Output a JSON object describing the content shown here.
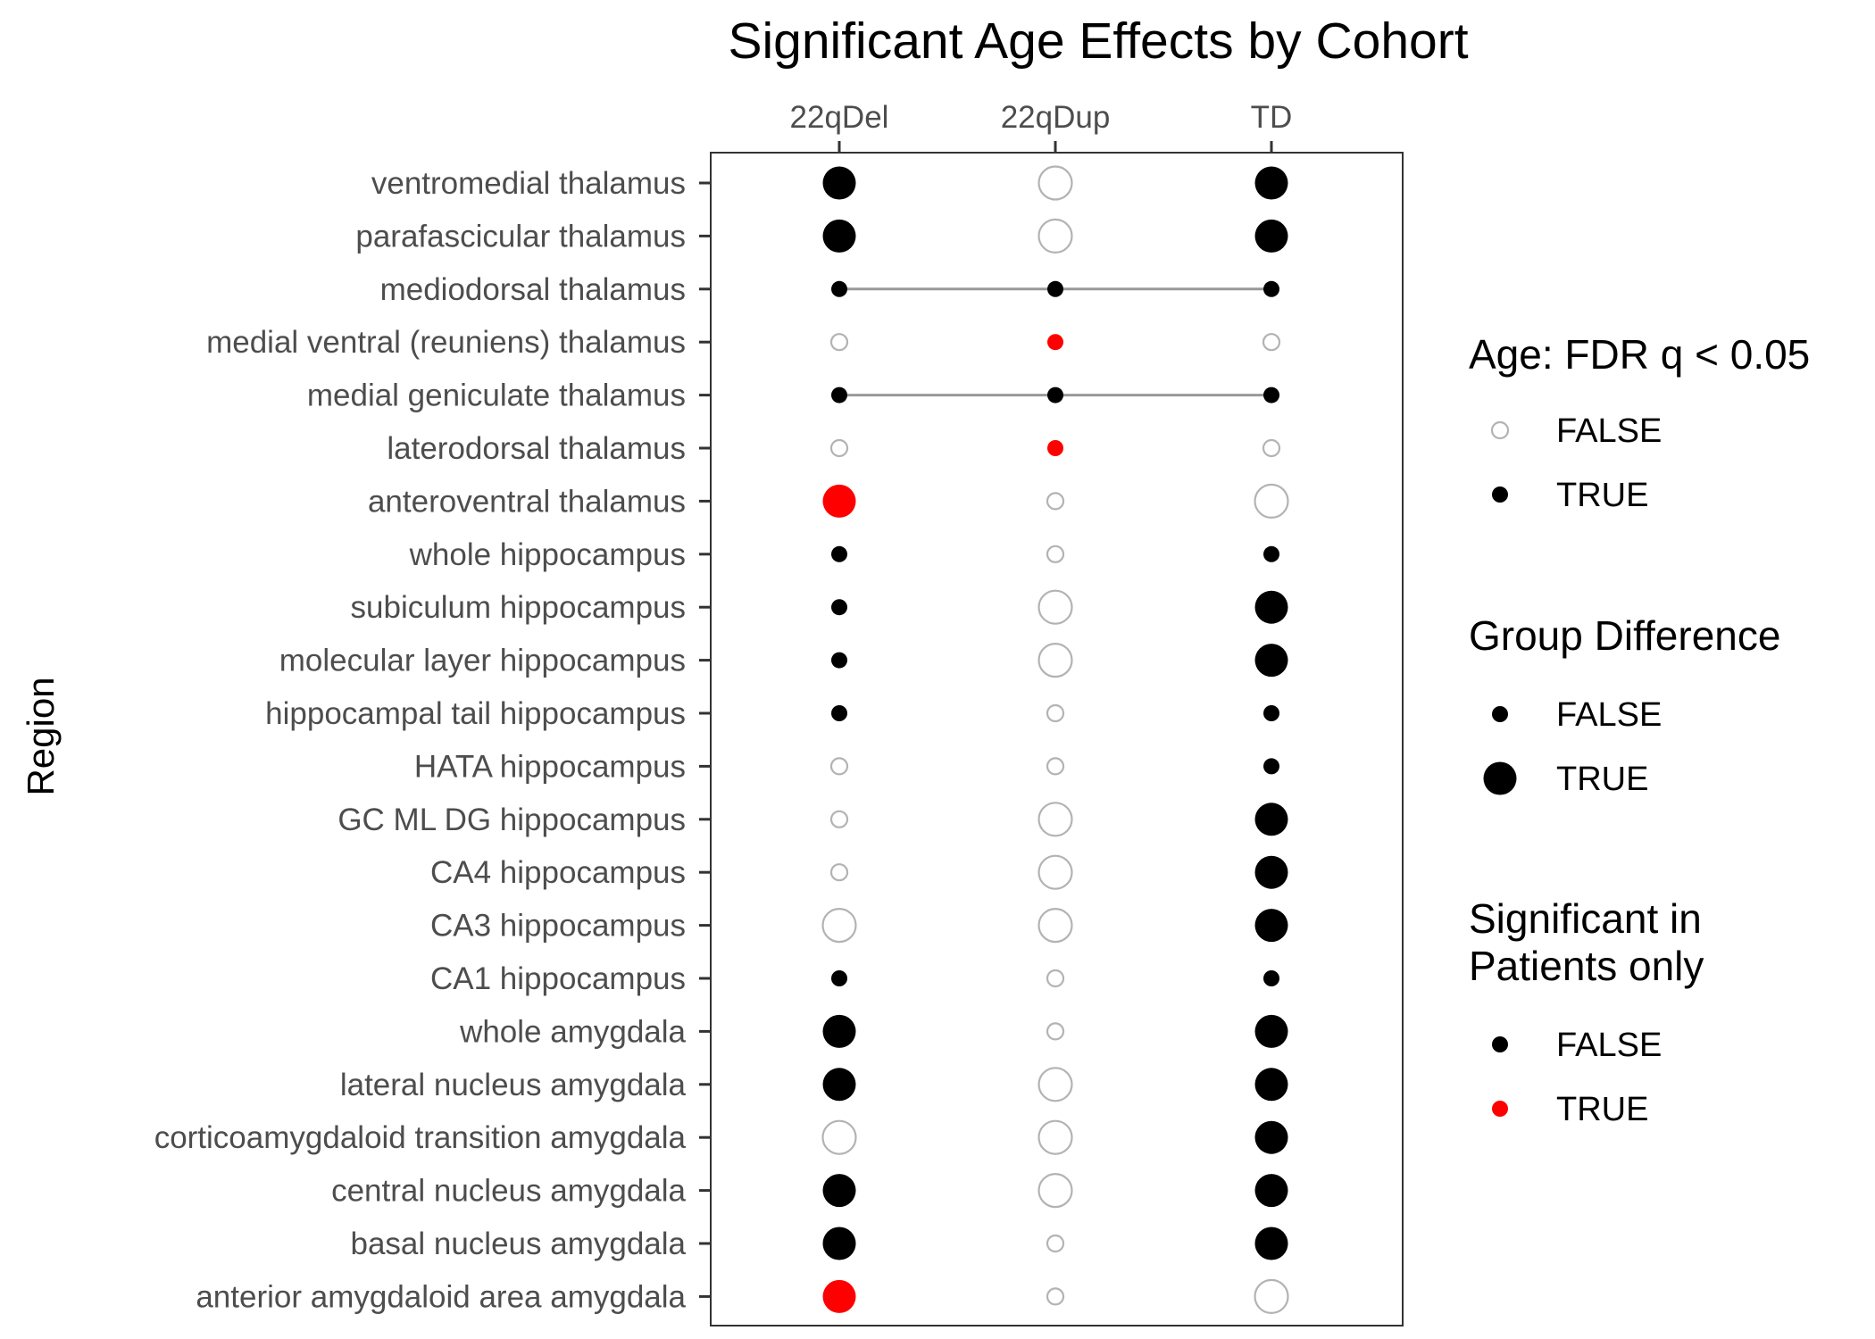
{
  "chart_data": {
    "type": "scatter",
    "title": "Significant Age Effects by Cohort",
    "xlabel": "",
    "ylabel": "Region",
    "x_axis_position": "top",
    "grid": false,
    "legend_position": "right",
    "columns": [
      "22qDel",
      "22qDup",
      "TD"
    ],
    "regions": [
      "ventromedial thalamus",
      "parafascicular thalamus",
      "mediodorsal thalamus",
      "medial ventral (reuniens) thalamus",
      "medial geniculate thalamus",
      "laterodorsal thalamus",
      "anteroventral thalamus",
      "whole hippocampus",
      "subiculum hippocampus",
      "molecular layer hippocampus",
      "hippocampal tail hippocampus",
      "HATA hippocampus",
      "GC ML DG hippocampus",
      "CA4 hippocampus",
      "CA3 hippocampus",
      "CA1 hippocampus",
      "whole amygdala",
      "lateral nucleus amygdala",
      "corticoamygdaloid transition amygdala",
      "central nucleus amygdala",
      "basal nucleus amygdala",
      "anterior amygdaloid area amygdala"
    ],
    "points_note": "each cell: [age_fdr_sig, group_difference, patients_only]",
    "points": [
      [
        [
          true,
          true,
          false
        ],
        [
          false,
          true,
          false
        ],
        [
          true,
          true,
          false
        ]
      ],
      [
        [
          true,
          true,
          false
        ],
        [
          false,
          true,
          false
        ],
        [
          true,
          true,
          false
        ]
      ],
      [
        [
          true,
          false,
          false
        ],
        [
          true,
          false,
          false
        ],
        [
          true,
          false,
          false
        ]
      ],
      [
        [
          false,
          false,
          false
        ],
        [
          true,
          false,
          true
        ],
        [
          false,
          false,
          false
        ]
      ],
      [
        [
          true,
          false,
          false
        ],
        [
          true,
          false,
          false
        ],
        [
          true,
          false,
          false
        ]
      ],
      [
        [
          false,
          false,
          false
        ],
        [
          true,
          false,
          true
        ],
        [
          false,
          false,
          false
        ]
      ],
      [
        [
          true,
          true,
          true
        ],
        [
          false,
          false,
          false
        ],
        [
          false,
          true,
          false
        ]
      ],
      [
        [
          true,
          false,
          false
        ],
        [
          false,
          false,
          false
        ],
        [
          true,
          false,
          false
        ]
      ],
      [
        [
          true,
          false,
          false
        ],
        [
          false,
          true,
          false
        ],
        [
          true,
          true,
          false
        ]
      ],
      [
        [
          true,
          false,
          false
        ],
        [
          false,
          true,
          false
        ],
        [
          true,
          true,
          false
        ]
      ],
      [
        [
          true,
          false,
          false
        ],
        [
          false,
          false,
          false
        ],
        [
          true,
          false,
          false
        ]
      ],
      [
        [
          false,
          false,
          false
        ],
        [
          false,
          false,
          false
        ],
        [
          true,
          false,
          false
        ]
      ],
      [
        [
          false,
          false,
          false
        ],
        [
          false,
          true,
          false
        ],
        [
          true,
          true,
          false
        ]
      ],
      [
        [
          false,
          false,
          false
        ],
        [
          false,
          true,
          false
        ],
        [
          true,
          true,
          false
        ]
      ],
      [
        [
          false,
          true,
          false
        ],
        [
          false,
          true,
          false
        ],
        [
          true,
          true,
          false
        ]
      ],
      [
        [
          true,
          false,
          false
        ],
        [
          false,
          false,
          false
        ],
        [
          true,
          false,
          false
        ]
      ],
      [
        [
          true,
          true,
          false
        ],
        [
          false,
          false,
          false
        ],
        [
          true,
          true,
          false
        ]
      ],
      [
        [
          true,
          true,
          false
        ],
        [
          false,
          true,
          false
        ],
        [
          true,
          true,
          false
        ]
      ],
      [
        [
          false,
          true,
          false
        ],
        [
          false,
          true,
          false
        ],
        [
          true,
          true,
          false
        ]
      ],
      [
        [
          true,
          true,
          false
        ],
        [
          false,
          true,
          false
        ],
        [
          true,
          true,
          false
        ]
      ],
      [
        [
          true,
          true,
          false
        ],
        [
          false,
          false,
          false
        ],
        [
          true,
          true,
          false
        ]
      ],
      [
        [
          true,
          true,
          true
        ],
        [
          false,
          false,
          false
        ],
        [
          false,
          true,
          false
        ]
      ]
    ],
    "connecting_lines": [
      "mediodorsal thalamus",
      "medial geniculate thalamus"
    ],
    "legends": [
      {
        "title_lines": [
          "Age: FDR q < 0.05"
        ],
        "encoding": "fill",
        "entries": [
          {
            "label": "FALSE",
            "style": "open-small"
          },
          {
            "label": "TRUE",
            "style": "filled-small"
          }
        ]
      },
      {
        "title_lines": [
          "Group Difference"
        ],
        "encoding": "size",
        "entries": [
          {
            "label": "FALSE",
            "style": "filled-small"
          },
          {
            "label": "TRUE",
            "style": "filled-large"
          }
        ]
      },
      {
        "title_lines": [
          "Significant in",
          "Patients only"
        ],
        "encoding": "color",
        "entries": [
          {
            "label": "FALSE",
            "style": "filled-small"
          },
          {
            "label": "TRUE",
            "style": "red-small"
          }
        ]
      }
    ],
    "colors": {
      "significant": "#000000",
      "patients_only": "#ff0000",
      "not_significant_stroke": "#b3b3b3",
      "line": "#999999",
      "panel_border": "#333333"
    }
  }
}
